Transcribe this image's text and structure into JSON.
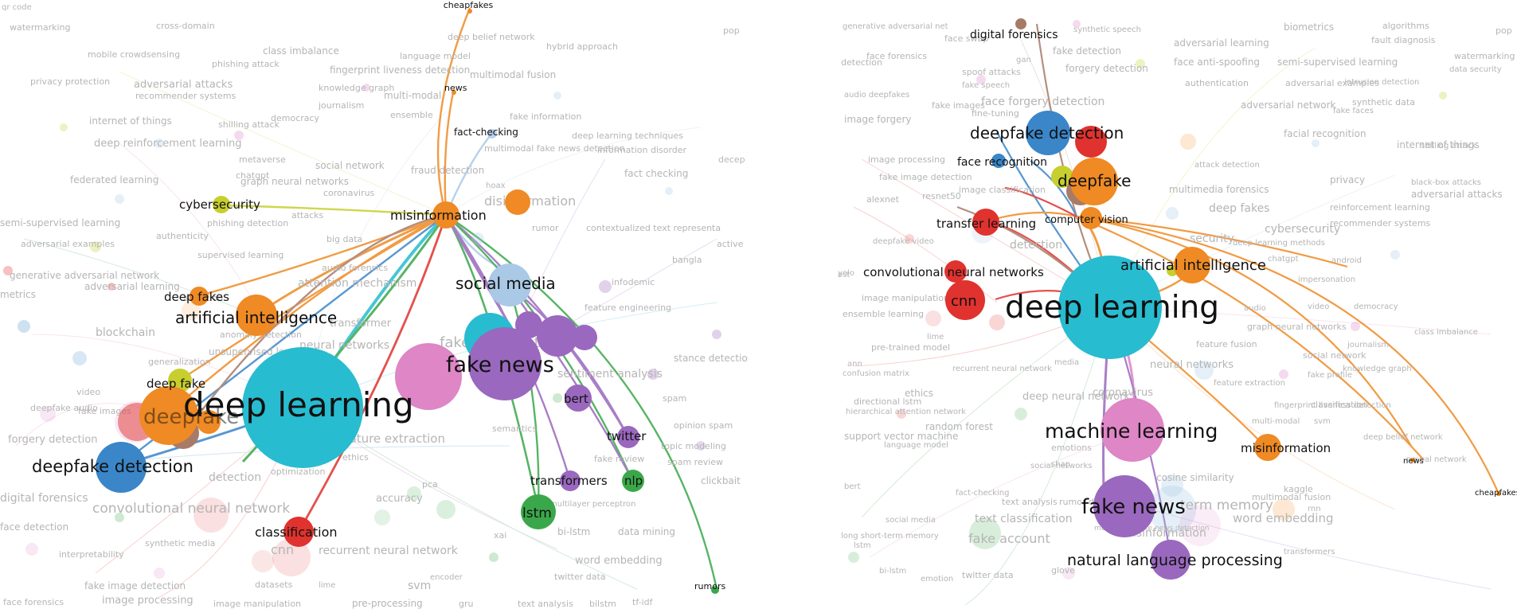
{
  "palette": {
    "cyan": "#28bcd0",
    "orange": "#ef8a24",
    "purple": "#9a68be",
    "pink": "#de86c6",
    "blue": "#3a86c8",
    "red": "#e0322e",
    "green": "#3aa84a",
    "lightblue": "#a9c9e6",
    "yellow": "#c7cf2e",
    "brown": "#a87a68",
    "faint_text": "#b0b0b0",
    "label": "#111111"
  },
  "panels": [
    {
      "id": "left",
      "nodes": [
        {
          "label": "deep learning",
          "color": "cyan"
        },
        {
          "label": "fake news",
          "color": "purple"
        },
        {
          "label": "social media",
          "color": "lightblue"
        },
        {
          "label": "misinformation",
          "color": "orange"
        },
        {
          "label": "artificial intelligence",
          "color": "orange"
        },
        {
          "label": "deepfake detection",
          "color": "blue"
        },
        {
          "label": "deepfake",
          "color": "orange"
        },
        {
          "label": "deep fake",
          "color": "yellow"
        },
        {
          "label": "deep fakes",
          "color": "orange"
        },
        {
          "label": "cybersecurity",
          "color": "yellow"
        },
        {
          "label": "fact-checking",
          "color": "lightblue"
        },
        {
          "label": "news",
          "color": "orange"
        },
        {
          "label": "cheapfakes",
          "color": "orange"
        },
        {
          "label": "bert",
          "color": "purple"
        },
        {
          "label": "twitter",
          "color": "purple"
        },
        {
          "label": "transformers",
          "color": "purple"
        },
        {
          "label": "nlp",
          "color": "green"
        },
        {
          "label": "lstm",
          "color": "green"
        },
        {
          "label": "classification",
          "color": "red"
        },
        {
          "label": "rumors",
          "color": "green"
        }
      ],
      "background_terms": [
        "qr code",
        "watermarking",
        "cross-domain",
        "mobile crowdsensing",
        "class imbalance",
        "deep belief network",
        "hybrid approach",
        "pop",
        "privacy protection",
        "language model",
        "phishing attack",
        "fingerprint liveness detection",
        "multimodal fusion",
        "adversarial attacks",
        "recommender systems",
        "knowledge graph",
        "multi-modal",
        "journalism",
        "internet of things",
        "shilling attack",
        "ensemble",
        "democracy",
        "fake information",
        "deep reinforcement learning",
        "deep learning techniques",
        "multimodal fake news detection",
        "information disorder",
        "decep",
        "metaverse",
        "social network",
        "chatgpt",
        "federated learning",
        "graph neural networks",
        "coronavirus",
        "fraud detection",
        "fact checking",
        "hoax",
        "disinformation",
        "phishing detection",
        "attacks",
        "rumor",
        "contextualized text representa",
        "semi-supervised learning",
        "authenticity",
        "big data",
        "active",
        "adversarial examples",
        "supervised learning",
        "bangla",
        "generative adversarial network",
        "adversarial learning",
        "audio forensics",
        "attention mechanism",
        "infodemic",
        "metrics",
        "attention",
        "feature engineering",
        "blockchain",
        "transformer",
        "neural networks",
        "fake news detection",
        "anomaly detection",
        "generalization",
        "unsupervised learning",
        "sentiment analysis",
        "stance detection",
        "video",
        "deepfake audio",
        "spam",
        "fake images",
        "opinion spam",
        "forgery detection",
        "semantics",
        "feature extraction",
        "topic modeling",
        "fake review",
        "spam review",
        "ethics",
        "detection",
        "optimization",
        "clickbait",
        "digital forensics",
        "convolutional neural network",
        "accuracy",
        "pca",
        "face detection",
        "multilayer perceptron",
        "bi-lstm",
        "data mining",
        "synthetic media",
        "cnn",
        "recurrent neural network",
        "interpretability",
        "word embedding",
        "datasets",
        "lime",
        "encoder",
        "twitter data",
        "svm",
        "face forensics",
        "image manipulation",
        "image processing",
        "pre-processing",
        "gru",
        "text analysis",
        "bilstm",
        "tf-idf",
        "xai",
        "fake image detection"
      ]
    },
    {
      "id": "right",
      "nodes": [
        {
          "label": "deep learning",
          "color": "cyan"
        },
        {
          "label": "machine learning",
          "color": "pink"
        },
        {
          "label": "fake news",
          "color": "purple"
        },
        {
          "label": "natural language processing",
          "color": "purple"
        },
        {
          "label": "deepfake detection",
          "color": "blue"
        },
        {
          "label": "deepfake",
          "color": "orange"
        },
        {
          "label": "artificial intelligence",
          "color": "orange"
        },
        {
          "label": "cnn",
          "color": "red"
        },
        {
          "label": "convolutional neural networks",
          "color": "red"
        },
        {
          "label": "transfer learning",
          "color": "red"
        },
        {
          "label": "computer vision",
          "color": "orange"
        },
        {
          "label": "face recognition",
          "color": "blue"
        },
        {
          "label": "digital forensics",
          "color": "brown"
        },
        {
          "label": "misinformation",
          "color": "orange"
        },
        {
          "label": "news",
          "color": "orange"
        },
        {
          "label": "cheapfakes",
          "color": "orange"
        }
      ],
      "background_terms": [
        "generative adversarial net",
        "synthetic speech",
        "biometrics",
        "algorithms",
        "pop",
        "face swap",
        "fake detection",
        "adversarial learning",
        "fault diagnosis",
        "watermarking",
        "face forensics",
        "gan",
        "semi-supervised learning",
        "data security",
        "detection",
        "forgery detection",
        "spoof attacks",
        "face anti-spoofing",
        "intrusion detection",
        "fake speech",
        "authentication",
        "adversarial examples",
        "audio deepfakes",
        "synthetic data",
        "fake images",
        "face forgery detection",
        "adversarial network",
        "fake faces",
        "image forgery",
        "fine-tuning",
        "facial recognition",
        "internet of things",
        "image processing",
        "attack detection",
        "shilling attack",
        "privacy",
        "black-box attacks",
        "fake image detection",
        "multimedia forensics",
        "adversarial attacks",
        "alexnet",
        "resnet50",
        "image classification",
        "deep fakes",
        "reinforcement learning",
        "security",
        "recommender systems",
        "deepfake video",
        "cybersecurity",
        "detection",
        "deep learning methods",
        "chatgpt",
        "android",
        "ost",
        "yolo",
        "impersonation",
        "image manipulation",
        "audio",
        "video",
        "democracy",
        "ensemble learning",
        "graph neural networks",
        "class imbalance",
        "multimodal",
        "lime",
        "feature fusion",
        "journalism",
        "social network",
        "ann",
        "neural networks",
        "fake profile",
        "knowledge graph",
        "confusion matrix",
        "pre-trained model",
        "recurrent neural network",
        "ethics",
        "media",
        "feature extraction",
        "deep neural network",
        "coronavirus",
        "fingerprint liveness detection",
        "classification",
        "directional lstm",
        "hierarchical attention network",
        "multi-modal",
        "svm",
        "random forest",
        "support vector machine",
        "language model",
        "deep belief network",
        "neural network",
        "emotions",
        "shap",
        "social networks",
        "cosine similarity",
        "fact-checking",
        "kaggle",
        "bert",
        "rumor detection",
        "multimodal fusion",
        "rnn",
        "text classification",
        "disinformation",
        "word embedding",
        "social media",
        "term memory",
        "long short-term memory",
        "text analysis",
        "lstm",
        "fake account",
        "multimodal fake news detection",
        "transformers",
        "glove",
        "bi-lstm",
        "twitter data",
        "emotion"
      ]
    }
  ]
}
